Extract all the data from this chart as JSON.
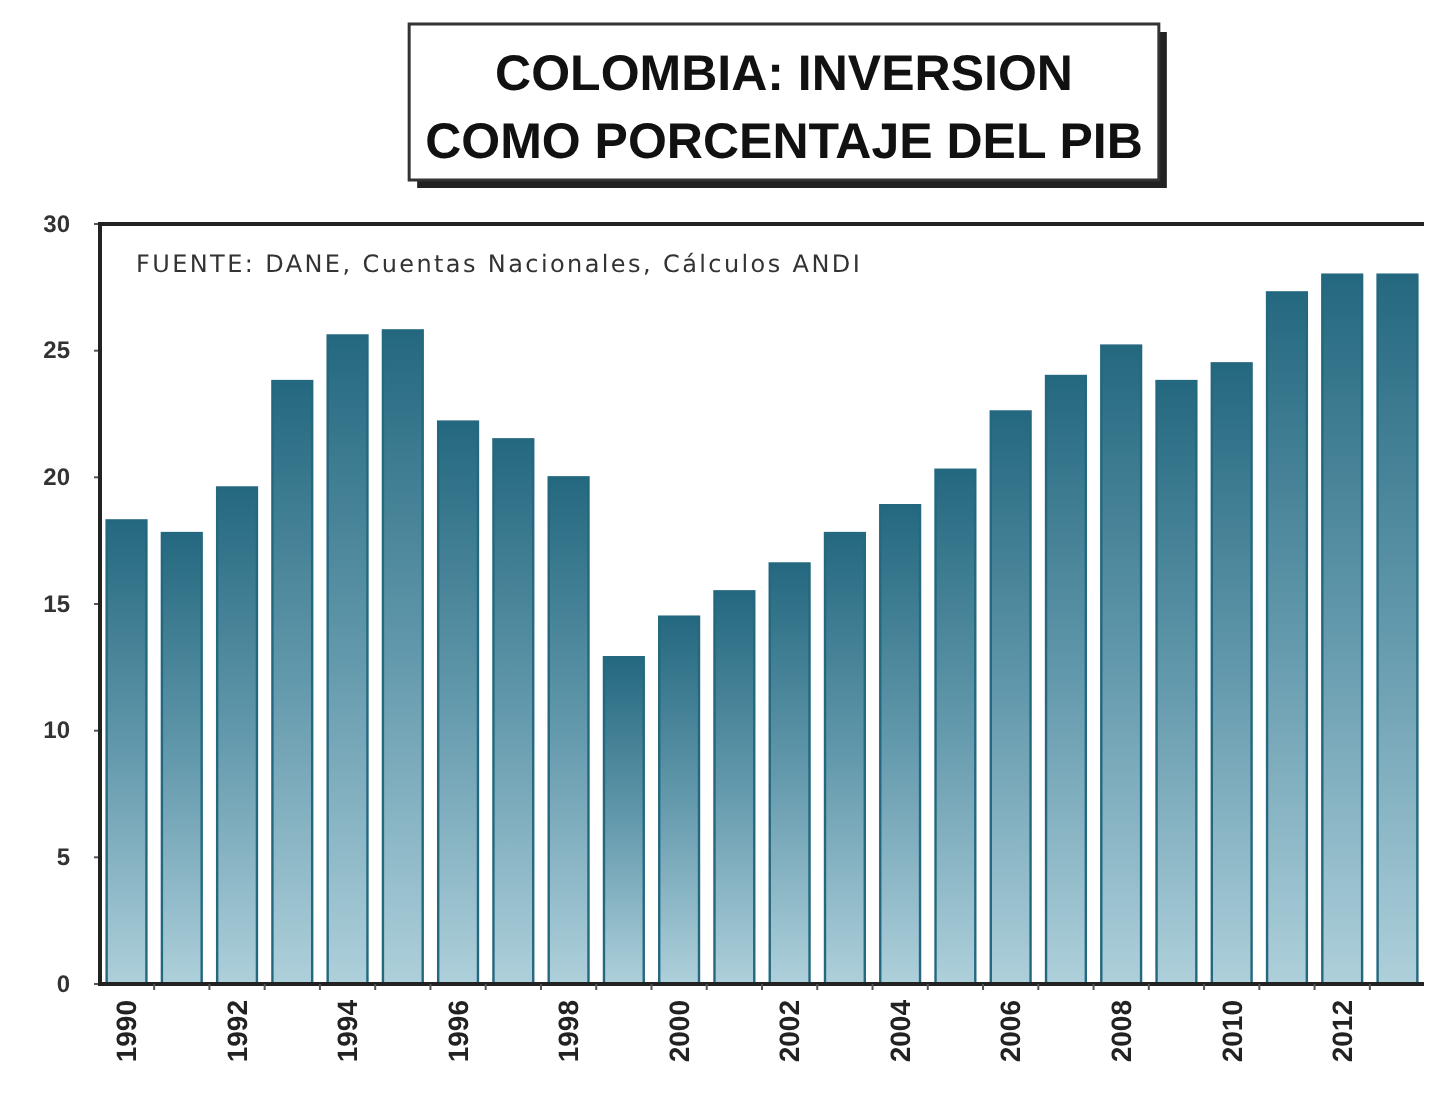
{
  "chart_data": {
    "type": "bar",
    "title": "COLOMBIA: INVERSION\nCOMO PORCENTAJE DEL PIB",
    "annotations": [
      "FUENTE: DANE, Cuentas Nacionales, Cálculos ANDI"
    ],
    "categories": [
      "1990",
      null,
      "1992",
      null,
      "1994",
      null,
      "1996",
      null,
      "1998",
      null,
      "2000",
      null,
      "2002",
      null,
      "2004",
      null,
      "2006",
      null,
      "2008",
      null,
      "2010",
      null,
      "2012",
      null
    ],
    "values": [
      18.3,
      17.8,
      19.6,
      23.8,
      25.6,
      25.8,
      22.2,
      21.5,
      20.0,
      12.9,
      14.5,
      15.5,
      16.6,
      17.8,
      18.9,
      20.3,
      22.6,
      24.0,
      25.2,
      23.8,
      24.5,
      27.3,
      28.0,
      28.0
    ],
    "color": "#24687f",
    "ylim": [
      0,
      30
    ],
    "yticks": [
      0,
      5,
      10,
      15,
      20,
      25,
      30
    ]
  }
}
